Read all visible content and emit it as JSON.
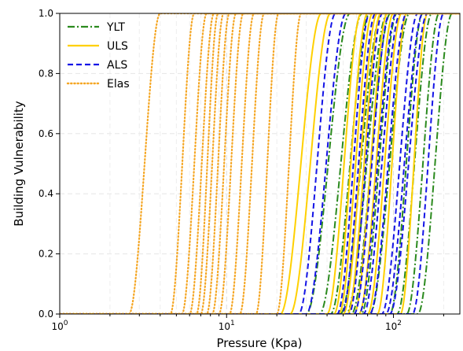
{
  "chart_data": {
    "type": "line",
    "title": "",
    "xlabel": "Pressure (Kpa)",
    "ylabel": "Building Vulnerability",
    "x_scale": "log",
    "xlim": [
      1,
      250
    ],
    "ylim": [
      0,
      1.0
    ],
    "grid": true,
    "legend_placement": "top-left",
    "x_ticks": [
      {
        "value": 1,
        "base": "10",
        "exp": "0"
      },
      {
        "value": 10,
        "base": "10",
        "exp": "1"
      },
      {
        "value": 100,
        "base": "10",
        "exp": "2"
      }
    ],
    "y_ticks": [
      {
        "value": 0.0,
        "label": "0.0"
      },
      {
        "value": 0.2,
        "label": "0.2"
      },
      {
        "value": 0.4,
        "label": "0.4"
      },
      {
        "value": 0.6,
        "label": "0.6"
      },
      {
        "value": 0.8,
        "label": "0.8"
      },
      {
        "value": 1.0,
        "label": "1.0"
      }
    ],
    "series": [
      {
        "name": "YLT",
        "color": "#2b8a1e",
        "dash": "dashdot",
        "curves": [
          {
            "start": 30,
            "end": 55
          },
          {
            "start": 36,
            "end": 65
          },
          {
            "start": 42,
            "end": 72
          },
          {
            "start": 48,
            "end": 85
          },
          {
            "start": 52,
            "end": 92
          },
          {
            "start": 56,
            "end": 96
          },
          {
            "start": 64,
            "end": 105
          },
          {
            "start": 72,
            "end": 125
          },
          {
            "start": 95,
            "end": 150
          },
          {
            "start": 105,
            "end": 170
          },
          {
            "start": 120,
            "end": 188
          },
          {
            "start": 140,
            "end": 225
          }
        ]
      },
      {
        "name": "ULS",
        "color": "#ffd000",
        "dash": "solid",
        "curves": [
          {
            "start": 21,
            "end": 37
          },
          {
            "start": 24,
            "end": 42
          },
          {
            "start": 40,
            "end": 64
          },
          {
            "start": 44,
            "end": 70
          },
          {
            "start": 47,
            "end": 75
          },
          {
            "start": 50,
            "end": 80
          },
          {
            "start": 53,
            "end": 84
          },
          {
            "start": 58,
            "end": 92
          },
          {
            "start": 62,
            "end": 100
          },
          {
            "start": 70,
            "end": 112
          },
          {
            "start": 80,
            "end": 120
          },
          {
            "start": 110,
            "end": 160
          }
        ]
      },
      {
        "name": "ALS",
        "color": "#1414e6",
        "dash": "dashed",
        "curves": [
          {
            "start": 27,
            "end": 45
          },
          {
            "start": 30,
            "end": 52
          },
          {
            "start": 46,
            "end": 72
          },
          {
            "start": 49,
            "end": 78
          },
          {
            "start": 54,
            "end": 86
          },
          {
            "start": 58,
            "end": 95
          },
          {
            "start": 62,
            "end": 104
          },
          {
            "start": 66,
            "end": 110
          },
          {
            "start": 72,
            "end": 120
          },
          {
            "start": 85,
            "end": 140
          },
          {
            "start": 90,
            "end": 150
          },
          {
            "start": 95,
            "end": 160
          },
          {
            "start": 130,
            "end": 200
          }
        ]
      },
      {
        "name": "Elas",
        "color": "#f5a623",
        "dash": "dotted",
        "curves": [
          {
            "start": 2.6,
            "end": 4.0
          },
          {
            "start": 4.6,
            "end": 6.4
          },
          {
            "start": 5.4,
            "end": 7.6
          },
          {
            "start": 6.0,
            "end": 8.4
          },
          {
            "start": 6.6,
            "end": 8.9
          },
          {
            "start": 7.0,
            "end": 9.6
          },
          {
            "start": 7.6,
            "end": 10.4
          },
          {
            "start": 8.2,
            "end": 11.4
          },
          {
            "start": 9.0,
            "end": 12.6
          },
          {
            "start": 10.4,
            "end": 14.6
          },
          {
            "start": 12.0,
            "end": 16.8
          },
          {
            "start": 15.0,
            "end": 20.5
          },
          {
            "start": 20.0,
            "end": 28.0
          }
        ]
      }
    ]
  }
}
